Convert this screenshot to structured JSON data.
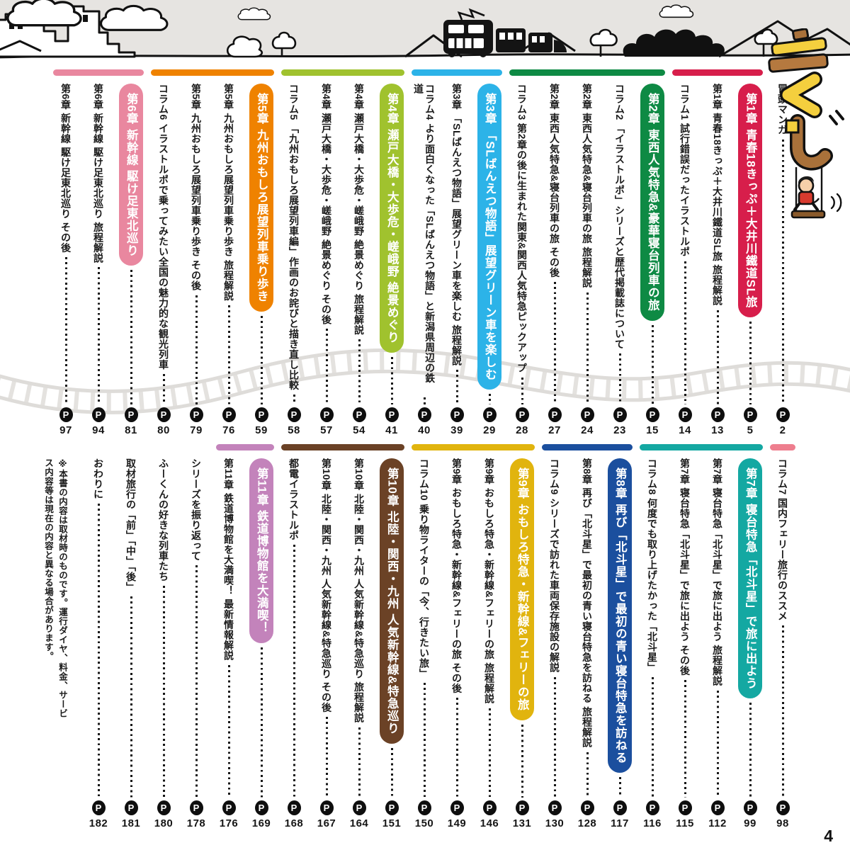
{
  "title": "もくじ",
  "page_footer_number": "4",
  "page_marker": "P",
  "colors": {
    "ch1_red": "#d71e4b",
    "ch2_green": "#0e8a44",
    "ch3_lightblue": "#2cb3e8",
    "ch4_yellowgreen": "#a0c22e",
    "ch5_orange": "#ef8200",
    "ch6_pink": "#e9879f",
    "ch7_teal": "#14a8a2",
    "ch8_blue": "#1b4f9e",
    "ch9_gold": "#e1b40e",
    "ch10_brown": "#6b4226",
    "ch11_orchid": "#c383bb",
    "column7_pink": "#ee7e8e"
  },
  "illustrations": {
    "header_scene": "city-skyline, clouds, train, forest, mountains",
    "title_logo": "もくじ stylized wooden blocks with swing and boy",
    "railway_track": "wavy light-gray railroad track"
  },
  "toc": {
    "top_row": {
      "entries": [
        {
          "label": "冒頭マンガ",
          "page": "2",
          "type": "plain"
        },
        {
          "label": "第1章 青春18きっぷ＋大井川鐵道SL旅",
          "page": "5",
          "type": "chapter",
          "color": "#d71e4b"
        },
        {
          "label": "第1章 青春18きっぷ＋大井川鐵道SL旅 旅程解説",
          "page": "13",
          "type": "plain"
        },
        {
          "label": "コラム1 試行錯誤だったイラストルポ",
          "page": "14",
          "type": "plain"
        },
        {
          "label": "第2章 東西人気特急&豪華寝台列車の旅",
          "page": "15",
          "type": "chapter",
          "color": "#0e8a44"
        },
        {
          "label": "コラム2 「イラストルポ」シリーズと歴代掲載誌について",
          "page": "23",
          "type": "plain"
        },
        {
          "label": "第2章 東西人気特急&寝台列車の旅 旅程解説",
          "page": "24",
          "type": "plain"
        },
        {
          "label": "第2章 東西人気特急&寝台列車の旅 その後",
          "page": "27",
          "type": "plain"
        },
        {
          "label": "コラム3 第2章の後に生まれた関東&関西人気特急ピックアップ",
          "page": "28",
          "type": "plain"
        },
        {
          "label": "第3章 「SLばんえつ物語」展望グリーン車を楽しむ",
          "page": "29",
          "type": "chapter",
          "color": "#2cb3e8"
        },
        {
          "label": "第3章 「SLばんえつ物語」展望グリーン車を楽しむ 旅程解説",
          "page": "39",
          "type": "plain"
        },
        {
          "label": "コラム4 より面白くなった「SLばんえつ物語」と新潟県周辺の鉄道",
          "page": "40",
          "type": "plain"
        },
        {
          "label": "第4章 瀬戸大橋・大歩危・嵯峨野 絶景めぐり",
          "page": "41",
          "type": "chapter",
          "color": "#a0c22e"
        },
        {
          "label": "第4章 瀬戸大橋・大歩危・嵯峨野 絶景めぐり 旅程解説",
          "page": "54",
          "type": "plain"
        },
        {
          "label": "第4章 瀬戸大橋・大歩危・嵯峨野 絶景めぐり その後",
          "page": "57",
          "type": "plain"
        },
        {
          "label": "コラム5 「九州おもしろ展望列車編」作画のお詫びと描き直し比較",
          "page": "58",
          "type": "plain"
        },
        {
          "label": "第5章 九州おもしろ展望列車乗り歩き",
          "page": "59",
          "type": "chapter",
          "color": "#ef8200"
        },
        {
          "label": "第5章 九州おもしろ展望列車乗り歩き 旅程解説",
          "page": "76",
          "type": "plain"
        },
        {
          "label": "第5章 九州おもしろ展望列車乗り歩き その後",
          "page": "79",
          "type": "plain"
        },
        {
          "label": "コラム6 イラストルポで乗ってみたい全国の魅力的な観光列車",
          "page": "80",
          "type": "plain"
        },
        {
          "label": "第6章 新幹線 駆け足東北巡り",
          "page": "81",
          "type": "chapter",
          "color": "#e9879f"
        },
        {
          "label": "第6章 新幹線 駆け足東北巡り 旅程解説",
          "page": "94",
          "type": "plain"
        },
        {
          "label": "第6章 新幹線 駆け足東北巡り その後",
          "page": "97",
          "type": "plain"
        }
      ],
      "groups": [
        {
          "color": "#d71e4b",
          "from": 1,
          "to": 3
        },
        {
          "color": "#0e8a44",
          "from": 4,
          "to": 8
        },
        {
          "color": "#2cb3e8",
          "from": 9,
          "to": 11
        },
        {
          "color": "#a0c22e",
          "from": 12,
          "to": 15
        },
        {
          "color": "#ef8200",
          "from": 16,
          "to": 19
        },
        {
          "color": "#e9879f",
          "from": 20,
          "to": 22
        }
      ]
    },
    "bottom_row": {
      "entries": [
        {
          "label": "コラム7 国内フェリー旅行のススメ",
          "page": "98",
          "type": "plain"
        },
        {
          "label": "第7章 寝台特急「北斗星」で旅に出よう",
          "page": "99",
          "type": "chapter",
          "color": "#14a8a2"
        },
        {
          "label": "第7章 寝台特急「北斗星」で旅に出よう 旅程解説",
          "page": "112",
          "type": "plain"
        },
        {
          "label": "第7章 寝台特急「北斗星」で旅に出よう その後",
          "page": "115",
          "type": "plain"
        },
        {
          "label": "コラム8 何度でも取り上げたかった「北斗星」",
          "page": "116",
          "type": "plain"
        },
        {
          "label": "第8章 再び「北斗星」で最初の青い寝台特急を訪ねる",
          "page": "117",
          "type": "chapter",
          "color": "#1b4f9e"
        },
        {
          "label": "第8章 再び「北斗星」で最初の青い寝台特急を訪ねる 旅程解説",
          "page": "128",
          "type": "plain"
        },
        {
          "label": "コラム9 シリーズで訪れた車両保存施設の解説",
          "page": "130",
          "type": "plain"
        },
        {
          "label": "第9章 おもしろ特急・新幹線&フェリーの旅",
          "page": "131",
          "type": "chapter",
          "color": "#e1b40e"
        },
        {
          "label": "第9章 おもしろ特急・新幹線&フェリーの旅 旅程解説",
          "page": "146",
          "type": "plain"
        },
        {
          "label": "第9章 おもしろ特急・新幹線&フェリーの旅 その後",
          "page": "149",
          "type": "plain"
        },
        {
          "label": "コラム10 乗り物ライターの「今、行きたい旅」",
          "page": "150",
          "type": "plain"
        },
        {
          "label": "第10章 北陸・関西・九州 人気新幹線&特急巡り",
          "page": "151",
          "type": "chapter",
          "color": "#6b4226"
        },
        {
          "label": "第10章 北陸・関西・九州 人気新幹線&特急巡り 旅程解説",
          "page": "164",
          "type": "plain"
        },
        {
          "label": "第10章 北陸・関西・九州 人気新幹線&特急巡り その後",
          "page": "167",
          "type": "plain"
        },
        {
          "label": "都電イラストルポ",
          "page": "168",
          "type": "plain"
        },
        {
          "label": "第11章 鉄道博物館を大満喫！",
          "page": "169",
          "type": "chapter",
          "color": "#c383bb"
        },
        {
          "label": "第11章 鉄道博物館を大満喫！ 最新情報解説",
          "page": "176",
          "type": "plain"
        },
        {
          "label": "シリーズを振り返って",
          "page": "178",
          "type": "plain"
        },
        {
          "label": "ふーくんの好きな列車たち",
          "page": "180",
          "type": "plain"
        },
        {
          "label": "取材旅行の「前」「中」「後」",
          "page": "181",
          "type": "plain"
        },
        {
          "label": "おわりに",
          "page": "182",
          "type": "plain"
        }
      ],
      "groups": [
        {
          "color": "#ee7e8e",
          "from": 0,
          "to": 0
        },
        {
          "color": "#14a8a2",
          "from": 1,
          "to": 4
        },
        {
          "color": "#1b4f9e",
          "from": 5,
          "to": 7
        },
        {
          "color": "#e1b40e",
          "from": 8,
          "to": 11
        },
        {
          "color": "#6b4226",
          "from": 12,
          "to": 15
        },
        {
          "color": "#c383bb",
          "from": 16,
          "to": 17
        }
      ],
      "note": "※本書の内容は取材時のものです。運行ダイヤ、料金、サービス内容等は現在の内容と異なる場合があります。"
    }
  }
}
